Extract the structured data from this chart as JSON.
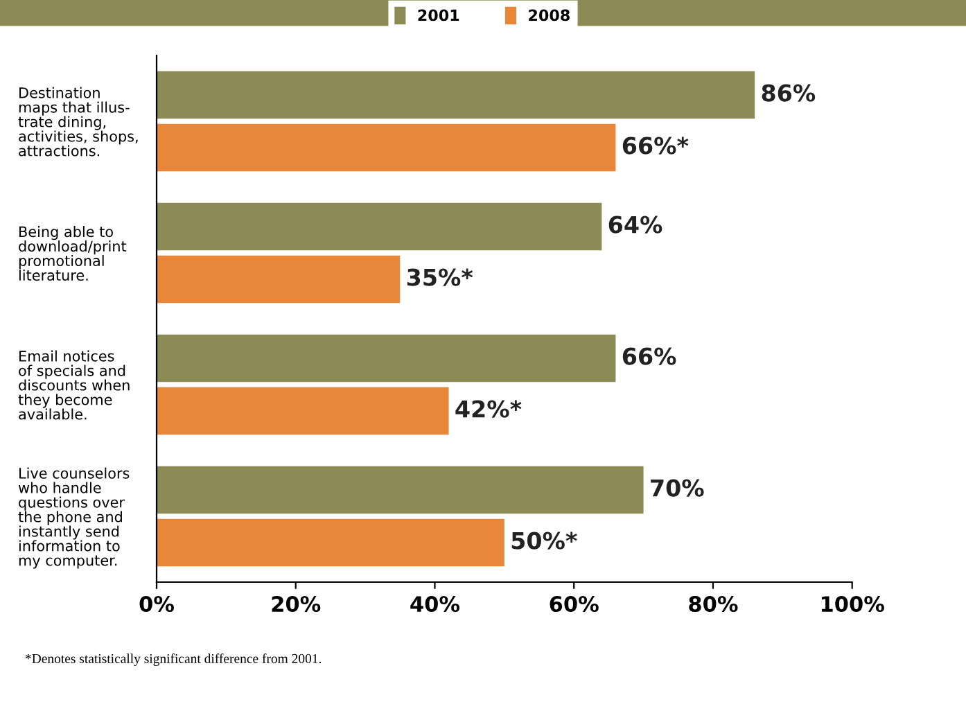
{
  "chart_data": {
    "type": "bar",
    "orientation": "horizontal",
    "categories": [
      "Destination\nmaps that illus-\ntrate dining,\nactivities, shops,\nattractions.",
      "Being able to\ndownload/print\npromotional\nliterature.",
      "Email notices\nof specials and\ndiscounts when\nthey become\navailable.",
      "Live counselors\nwho handle\nquestions over\nthe phone and\ninstantly send\ninformation to\nmy computer."
    ],
    "series": [
      {
        "name": "2001",
        "color": "#8c8b55",
        "values": [
          86,
          64,
          66,
          70
        ],
        "value_labels": [
          "86%",
          "64%",
          "66%",
          "70%"
        ]
      },
      {
        "name": "2008",
        "color": "#e8863a",
        "values": [
          66,
          35,
          42,
          50
        ],
        "value_labels": [
          "66%*",
          "35%*",
          "42%*",
          "50%*"
        ]
      }
    ],
    "xlim": [
      0,
      100
    ],
    "xticks": [
      {
        "value": 0,
        "label": "0%"
      },
      {
        "value": 20,
        "label": "20%"
      },
      {
        "value": 40,
        "label": "40%"
      },
      {
        "value": 60,
        "label": "60%"
      },
      {
        "value": 80,
        "label": "80%"
      },
      {
        "value": 100,
        "label": "100%"
      }
    ],
    "grid": false,
    "legend": "top",
    "annotations": [
      "*Denotes statistically significant difference from 2001."
    ]
  }
}
